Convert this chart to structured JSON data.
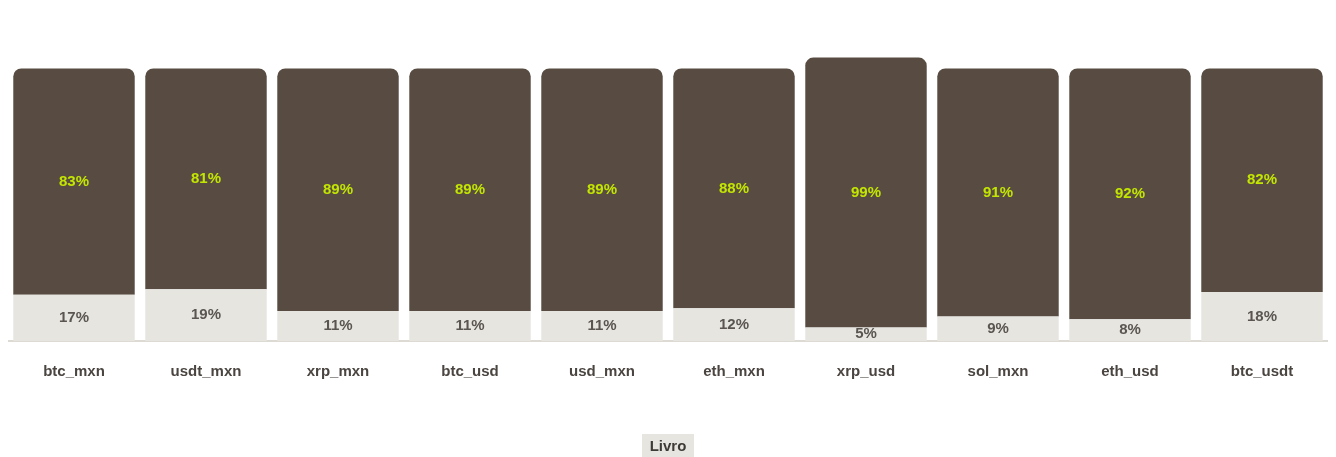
{
  "chart_data": {
    "type": "bar",
    "stacked": true,
    "xlabel": "Livro",
    "categories": [
      "btc_mxn",
      "usdt_mxn",
      "xrp_mxn",
      "btc_usd",
      "usd_mxn",
      "eth_mxn",
      "xrp_usd",
      "sol_mxn",
      "eth_usd",
      "btc_usdt"
    ],
    "series": [
      {
        "color": "#e6e5e0",
        "values": [
          17,
          19,
          11,
          11,
          11,
          12,
          5,
          9,
          8,
          18
        ],
        "value_labels": [
          "17%",
          "19%",
          "11%",
          "11%",
          "11%",
          "12%",
          "5%",
          "9%",
          "8%",
          "18%"
        ]
      },
      {
        "color": "#584c42",
        "values": [
          83,
          81,
          89,
          89,
          89,
          88,
          99,
          91,
          92,
          82
        ],
        "value_labels": [
          "83%",
          "81%",
          "89%",
          "89%",
          "89%",
          "88%",
          "99%",
          "91%",
          "92%",
          "82%"
        ]
      }
    ],
    "grid": false,
    "legend": false
  }
}
